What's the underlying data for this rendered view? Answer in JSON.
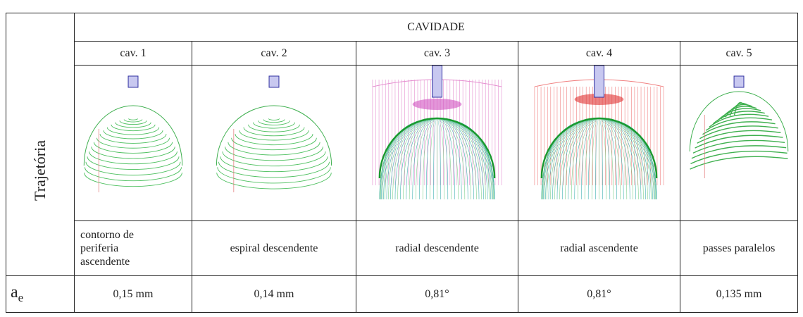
{
  "table": {
    "group_header": "CAVIDADE",
    "columns": [
      "cav. 1",
      "cav. 2",
      "cav. 3",
      "cav. 4",
      "cav. 5"
    ],
    "row_label_trajectory": "Trajetória",
    "descriptions": [
      "contorno de periferia ascendente",
      "espiral descendente",
      "radial descendente",
      "radial ascendente",
      "passes paralelos"
    ],
    "ae_label": {
      "main": "a",
      "sub": "e"
    },
    "ae_values": [
      "0,15 mm",
      "0,14 mm",
      "0,81°",
      "0,81°",
      "0,135 mm"
    ]
  }
}
